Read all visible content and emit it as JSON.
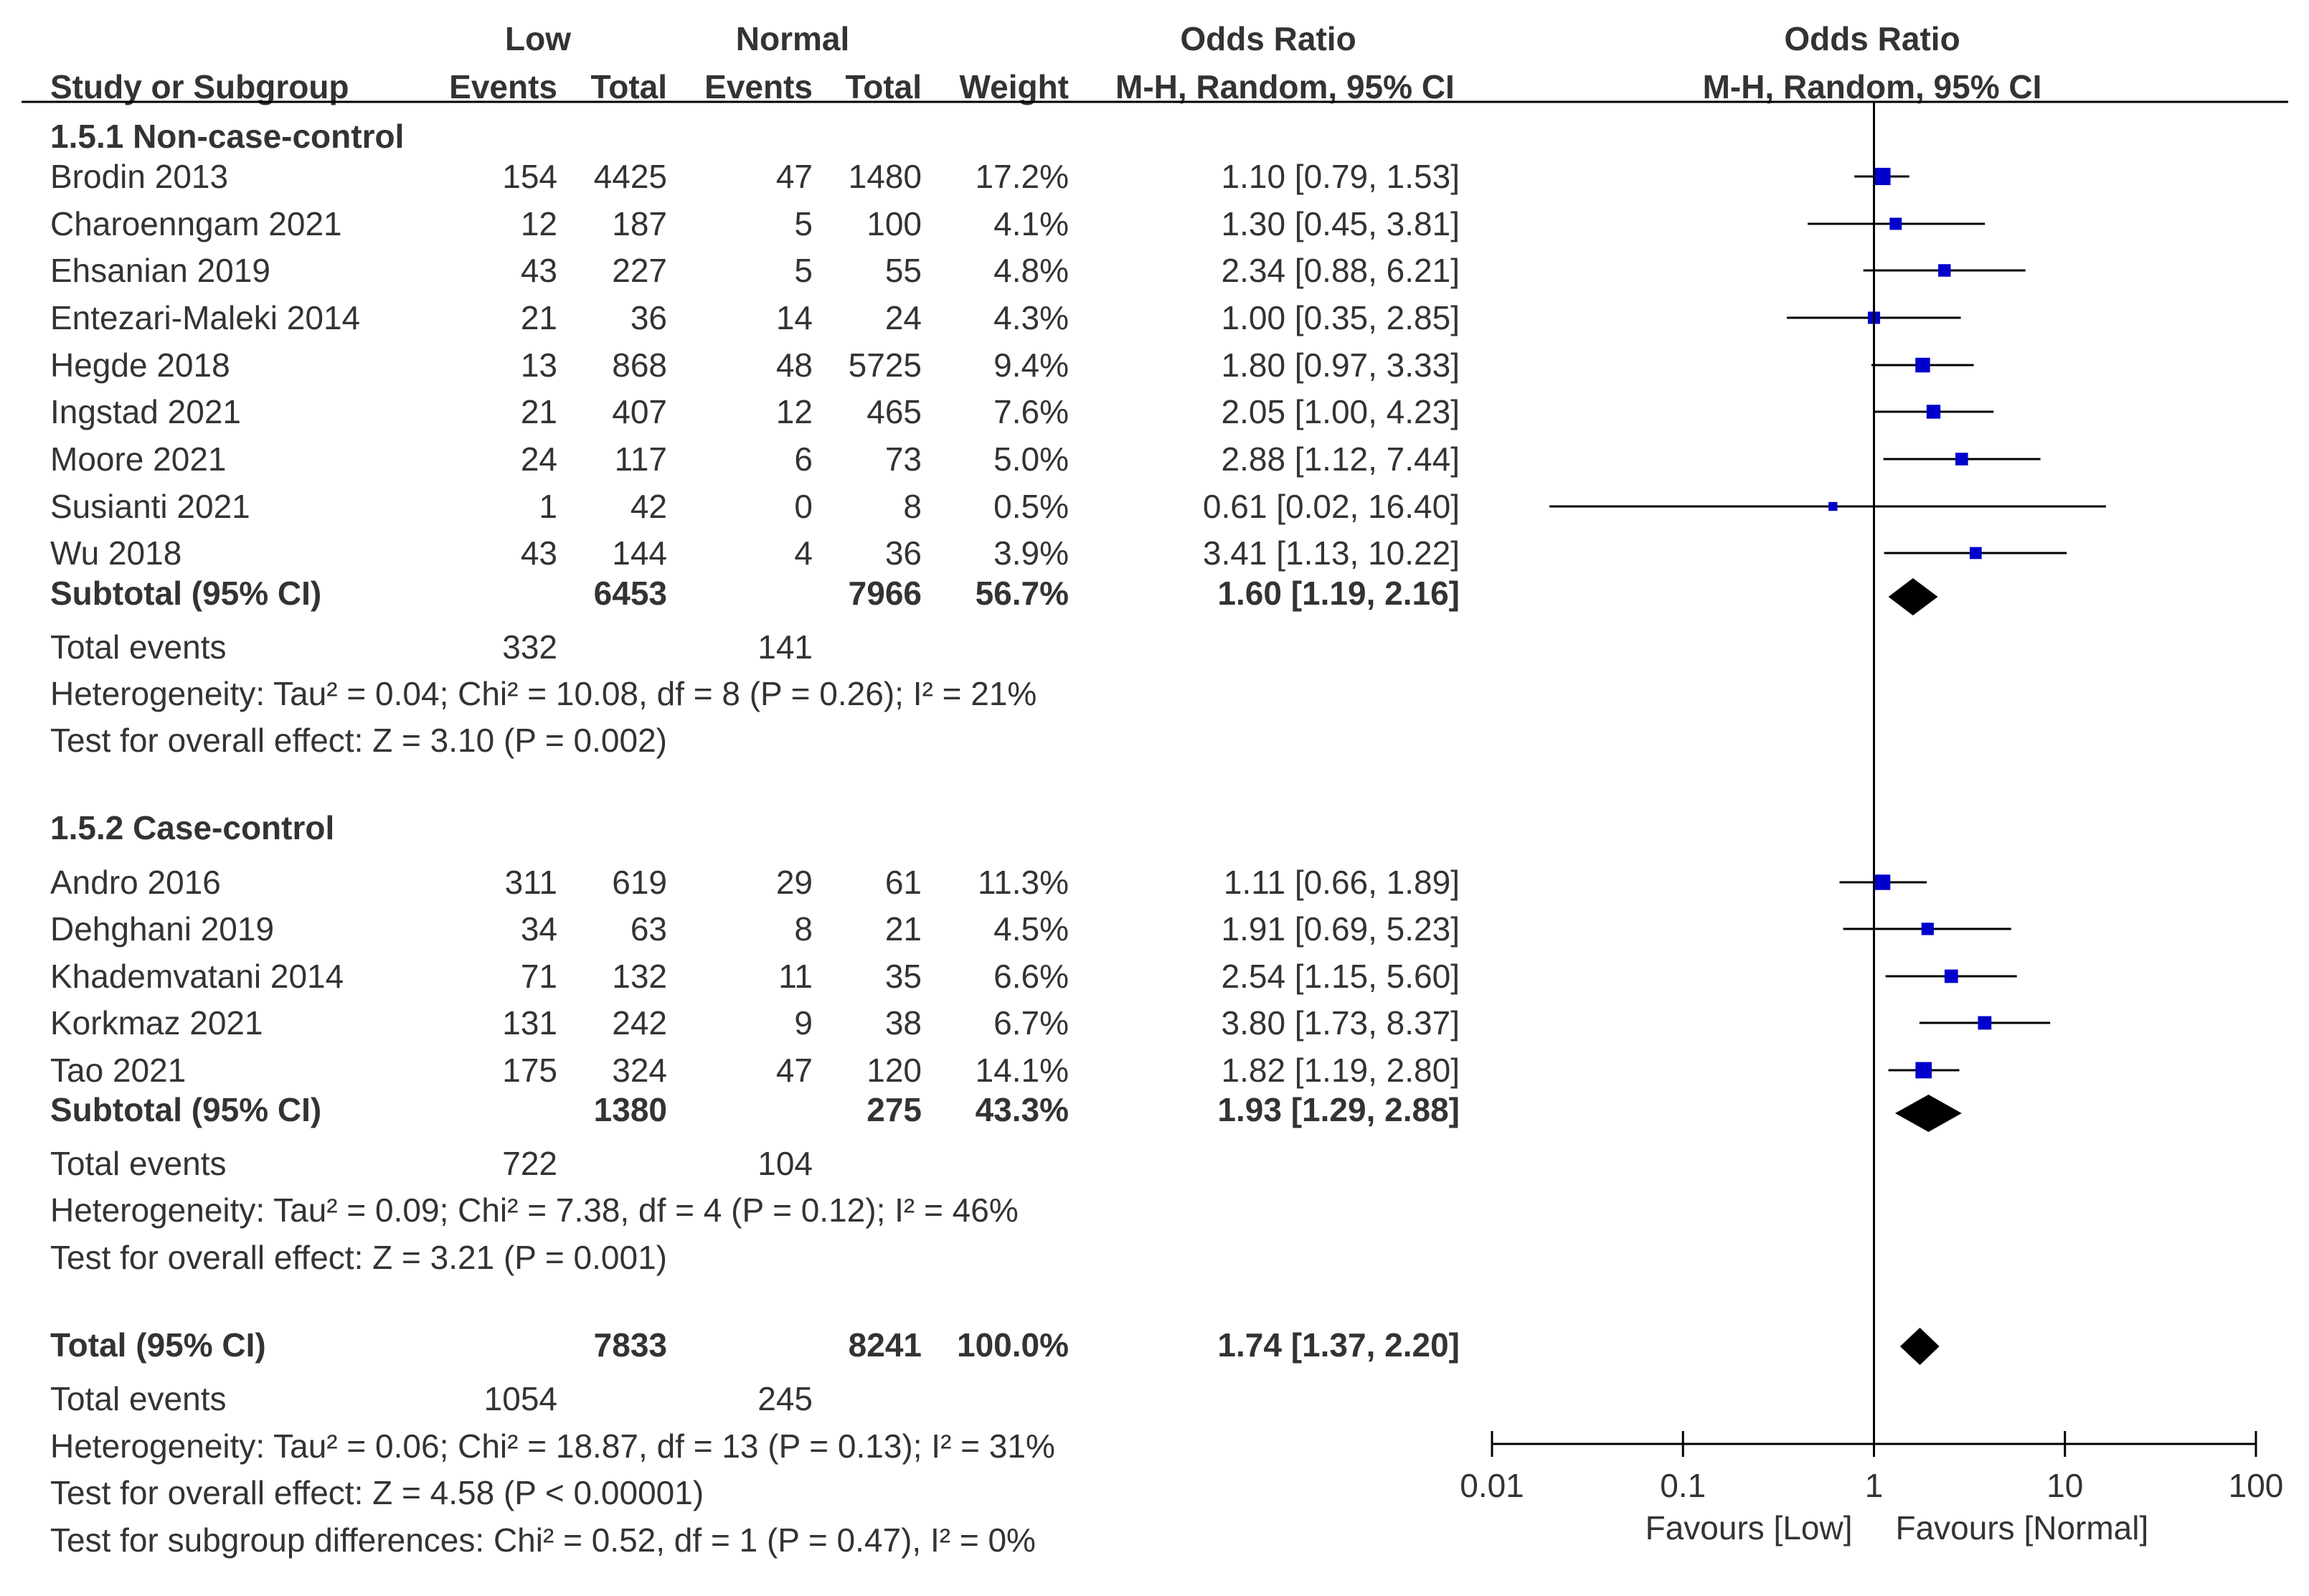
{
  "header": {
    "group_low": "Low",
    "group_normal": "Normal",
    "odds_ratio": "Odds Ratio",
    "study_or_subgroup": "Study or Subgroup",
    "events": "Events",
    "total": "Total",
    "weight": "Weight",
    "method": "M-H, Random, 95% CI",
    "plot_odds_ratio": "Odds Ratio",
    "plot_method": "M-H, Random, 95% CI"
  },
  "chart_data": {
    "type": "forest",
    "effect_measure": "Odds Ratio (M-H, Random, 95% CI)",
    "x_scale": "log",
    "xlim": [
      0.01,
      100
    ],
    "null_value": 1,
    "ticks": [
      0.01,
      0.1,
      1,
      10,
      100
    ],
    "tick_labels": [
      "0.01",
      "0.1",
      "1",
      "10",
      "100"
    ],
    "xlabel_left": "Favours [Low]",
    "xlabel_right": "Favours [Normal]",
    "subgroups": [
      {
        "title": "1.5.1 Non-case-control",
        "studies": [
          {
            "study": "Brodin 2013",
            "low_events": "154",
            "low_total": "4425",
            "normal_events": "47",
            "normal_total": "1480",
            "weight": "17.2%",
            "or_text": "1.10 [0.79, 1.53]",
            "or": 1.1,
            "lo": 0.79,
            "hi": 1.53
          },
          {
            "study": "Charoenngam 2021",
            "low_events": "12",
            "low_total": "187",
            "normal_events": "5",
            "normal_total": "100",
            "weight": "4.1%",
            "or_text": "1.30 [0.45, 3.81]",
            "or": 1.3,
            "lo": 0.45,
            "hi": 3.81
          },
          {
            "study": "Ehsanian 2019",
            "low_events": "43",
            "low_total": "227",
            "normal_events": "5",
            "normal_total": "55",
            "weight": "4.8%",
            "or_text": "2.34 [0.88, 6.21]",
            "or": 2.34,
            "lo": 0.88,
            "hi": 6.21
          },
          {
            "study": "Entezari-Maleki 2014",
            "low_events": "21",
            "low_total": "36",
            "normal_events": "14",
            "normal_total": "24",
            "weight": "4.3%",
            "or_text": "1.00 [0.35, 2.85]",
            "or": 1.0,
            "lo": 0.35,
            "hi": 2.85
          },
          {
            "study": "Hegde 2018",
            "low_events": "13",
            "low_total": "868",
            "normal_events": "48",
            "normal_total": "5725",
            "weight": "9.4%",
            "or_text": "1.80 [0.97, 3.33]",
            "or": 1.8,
            "lo": 0.97,
            "hi": 3.33
          },
          {
            "study": "Ingstad 2021",
            "low_events": "21",
            "low_total": "407",
            "normal_events": "12",
            "normal_total": "465",
            "weight": "7.6%",
            "or_text": "2.05 [1.00, 4.23]",
            "or": 2.05,
            "lo": 1.0,
            "hi": 4.23
          },
          {
            "study": "Moore 2021",
            "low_events": "24",
            "low_total": "117",
            "normal_events": "6",
            "normal_total": "73",
            "weight": "5.0%",
            "or_text": "2.88 [1.12, 7.44]",
            "or": 2.88,
            "lo": 1.12,
            "hi": 7.44
          },
          {
            "study": "Susianti 2021",
            "low_events": "1",
            "low_total": "42",
            "normal_events": "0",
            "normal_total": "8",
            "weight": "0.5%",
            "or_text": "0.61 [0.02, 16.40]",
            "or": 0.61,
            "lo": 0.02,
            "hi": 16.4
          },
          {
            "study": "Wu 2018",
            "low_events": "43",
            "low_total": "144",
            "normal_events": "4",
            "normal_total": "36",
            "weight": "3.9%",
            "or_text": "3.41 [1.13, 10.22]",
            "or": 3.41,
            "lo": 1.13,
            "hi": 10.22
          }
        ],
        "subtotal": {
          "label": "Subtotal (95% CI)",
          "low_total": "6453",
          "normal_total": "7966",
          "weight": "56.7%",
          "or_text": "1.60 [1.19, 2.16]",
          "or": 1.6,
          "lo": 1.19,
          "hi": 2.16
        },
        "total_events": {
          "label": "Total events",
          "low": "332",
          "normal": "141"
        },
        "heterogeneity": "Heterogeneity: Tau² = 0.04; Chi² = 10.08, df = 8 (P = 0.26); I² = 21%",
        "overall_effect": "Test for overall effect: Z = 3.10 (P = 0.002)"
      },
      {
        "title": "1.5.2 Case-control",
        "studies": [
          {
            "study": "Andro 2016",
            "low_events": "311",
            "low_total": "619",
            "normal_events": "29",
            "normal_total": "61",
            "weight": "11.3%",
            "or_text": "1.11 [0.66, 1.89]",
            "or": 1.11,
            "lo": 0.66,
            "hi": 1.89
          },
          {
            "study": "Dehghani 2019",
            "low_events": "34",
            "low_total": "63",
            "normal_events": "8",
            "normal_total": "21",
            "weight": "4.5%",
            "or_text": "1.91 [0.69, 5.23]",
            "or": 1.91,
            "lo": 0.69,
            "hi": 5.23
          },
          {
            "study": "Khademvatani 2014",
            "low_events": "71",
            "low_total": "132",
            "normal_events": "11",
            "normal_total": "35",
            "weight": "6.6%",
            "or_text": "2.54 [1.15, 5.60]",
            "or": 2.54,
            "lo": 1.15,
            "hi": 5.6
          },
          {
            "study": "Korkmaz 2021",
            "low_events": "131",
            "low_total": "242",
            "normal_events": "9",
            "normal_total": "38",
            "weight": "6.7%",
            "or_text": "3.80 [1.73, 8.37]",
            "or": 3.8,
            "lo": 1.73,
            "hi": 8.37
          },
          {
            "study": "Tao 2021",
            "low_events": "175",
            "low_total": "324",
            "normal_events": "47",
            "normal_total": "120",
            "weight": "14.1%",
            "or_text": "1.82 [1.19, 2.80]",
            "or": 1.82,
            "lo": 1.19,
            "hi": 2.8
          }
        ],
        "subtotal": {
          "label": "Subtotal (95% CI)",
          "low_total": "1380",
          "normal_total": "275",
          "weight": "43.3%",
          "or_text": "1.93 [1.29, 2.88]",
          "or": 1.93,
          "lo": 1.29,
          "hi": 2.88
        },
        "total_events": {
          "label": "Total events",
          "low": "722",
          "normal": "104"
        },
        "heterogeneity": "Heterogeneity: Tau² = 0.09; Chi² = 7.38, df = 4 (P = 0.12); I² = 46%",
        "overall_effect": "Test for overall effect: Z = 3.21 (P = 0.001)"
      }
    ],
    "overall": {
      "total": {
        "label": "Total (95% CI)",
        "low_total": "7833",
        "normal_total": "8241",
        "weight": "100.0%",
        "or_text": "1.74 [1.37, 2.20]",
        "or": 1.74,
        "lo": 1.37,
        "hi": 2.2
      },
      "total_events": {
        "label": "Total events",
        "low": "1054",
        "normal": "245"
      },
      "heterogeneity": "Heterogeneity: Tau² = 0.06; Chi² = 18.87, df = 13 (P = 0.13); I² = 31%",
      "overall_effect": "Test for overall effect: Z = 4.58 (P < 0.00001)",
      "subgroup_differences": "Test for subgroup differences: Chi² = 0.52, df = 1 (P = 0.47), I² = 0%"
    },
    "colors": {
      "study_marker": "#0000cc",
      "diamond": "#000000",
      "text": "#333333",
      "line": "#000000"
    }
  }
}
